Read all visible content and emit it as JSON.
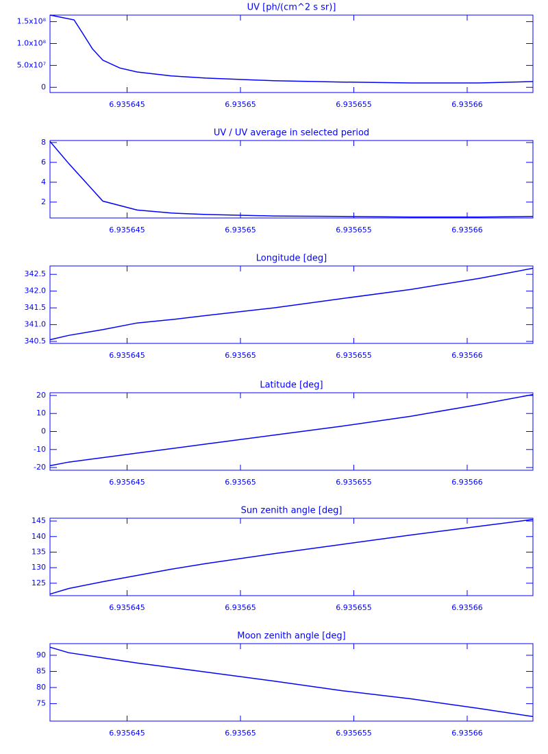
{
  "chart_data": [
    {
      "type": "line",
      "title": "UV [ph/(cm^2 s sr)]",
      "color": "#0000ff",
      "x": [
        6.9356416,
        6.93564266,
        6.93564302,
        6.93564347,
        6.93564393,
        6.93564468,
        6.93564544,
        6.93564695,
        6.93564846,
        6.93565148,
        6.9356545,
        6.93565752,
        6.93566054,
        6.9356629
      ],
      "values": [
        165000000,
        154000000,
        125000000,
        88000000,
        62000000,
        44000000,
        35000000,
        26000000,
        21000000,
        15000000,
        12000000,
        10000000,
        10000000,
        13000000
      ],
      "xlim": [
        6.9356416,
        6.9356629
      ],
      "xticks": [
        6.935645,
        6.93565,
        6.935655,
        6.93566
      ],
      "ylim": [
        -12000000,
        165000000
      ],
      "yticks": [
        0,
        {
          "value": 50000000,
          "label": "5.0x10⁷"
        },
        {
          "value": 100000000,
          "label": "1.0x10⁸"
        },
        {
          "value": 150000000,
          "label": "1.5x10⁸"
        }
      ]
    },
    {
      "type": "line",
      "title": "UV / UV average in selected period",
      "color": "#0000ff",
      "x": [
        6.9356416,
        6.93564242,
        6.93564393,
        6.93564544,
        6.93564695,
        6.93564846,
        6.93565148,
        6.9356545,
        6.93565752,
        6.93566054,
        6.9356629
      ],
      "values": [
        8.1,
        5.9,
        2.1,
        1.2,
        0.9,
        0.75,
        0.6,
        0.55,
        0.5,
        0.5,
        0.55
      ],
      "xlim": [
        6.9356416,
        6.9356629
      ],
      "xticks": [
        6.935645,
        6.93565,
        6.935655,
        6.93566
      ],
      "ylim": [
        0.4,
        8.2
      ],
      "yticks": [
        2,
        4,
        6,
        8
      ]
    },
    {
      "type": "line",
      "title": "Longitude [deg]",
      "color": "#0000ff",
      "x": [
        6.9356416,
        6.93564242,
        6.93564393,
        6.93564544,
        6.93564695,
        6.93564846,
        6.93565148,
        6.9356545,
        6.93565752,
        6.93566054,
        6.9356629
      ],
      "values": [
        340.55,
        340.68,
        340.85,
        341.05,
        341.15,
        341.27,
        341.5,
        341.78,
        342.05,
        342.38,
        342.68
      ],
      "xlim": [
        6.9356416,
        6.9356629
      ],
      "xticks": [
        6.935645,
        6.93565,
        6.935655,
        6.93566
      ],
      "ylim": [
        340.44,
        342.75
      ],
      "yticks": [
        340.5,
        {
          "value": 341,
          "label": "341.0"
        },
        341.5,
        {
          "value": 342,
          "label": "342.0"
        },
        342.5
      ]
    },
    {
      "type": "line",
      "title": "Latitude [deg]",
      "color": "#0000ff",
      "x": [
        6.9356416,
        6.93564242,
        6.93564393,
        6.93564544,
        6.93564695,
        6.93564846,
        6.93565148,
        6.9356545,
        6.93565752,
        6.93566054,
        6.9356629
      ],
      "values": [
        -19,
        -17,
        -14.5,
        -12,
        -9.5,
        -7,
        -2,
        3,
        8.5,
        15,
        20.5
      ],
      "xlim": [
        6.9356416,
        6.9356629
      ],
      "xticks": [
        6.935645,
        6.93565,
        6.935655,
        6.93566
      ],
      "ylim": [
        -21.5,
        21.5
      ],
      "yticks": [
        -20,
        -10,
        0,
        10,
        20
      ]
    },
    {
      "type": "line",
      "title": "Sun zenith angle [deg]",
      "color": "#0000ff",
      "x": [
        6.9356416,
        6.93564242,
        6.93564393,
        6.93564544,
        6.93564695,
        6.93564846,
        6.93565148,
        6.9356545,
        6.93565752,
        6.93566054,
        6.9356629
      ],
      "values": [
        121.5,
        123.3,
        125.5,
        127.5,
        129.5,
        131.3,
        134.5,
        137.5,
        140.5,
        143.3,
        145.5
      ],
      "xlim": [
        6.9356416,
        6.9356629
      ],
      "xticks": [
        6.935645,
        6.93565,
        6.935655,
        6.93566
      ],
      "ylim": [
        121,
        145.9
      ],
      "yticks": [
        125,
        130,
        135,
        140,
        145
      ]
    },
    {
      "type": "line",
      "title": "Moon zenith angle [deg]",
      "color": "#0000ff",
      "x": [
        6.9356416,
        6.93564242,
        6.93564393,
        6.93564544,
        6.93564695,
        6.93564846,
        6.93565148,
        6.9356545,
        6.93565752,
        6.93566054,
        6.9356629
      ],
      "values": [
        92.5,
        90.8,
        89.2,
        87.6,
        86.2,
        84.8,
        82,
        79,
        76.5,
        73.5,
        71
      ],
      "xlim": [
        6.9356416,
        6.9356629
      ],
      "xticks": [
        6.935645,
        6.93565,
        6.935655,
        6.93566
      ],
      "ylim": [
        69.6,
        93.6
      ],
      "yticks": [
        75,
        80,
        85,
        90
      ]
    }
  ]
}
